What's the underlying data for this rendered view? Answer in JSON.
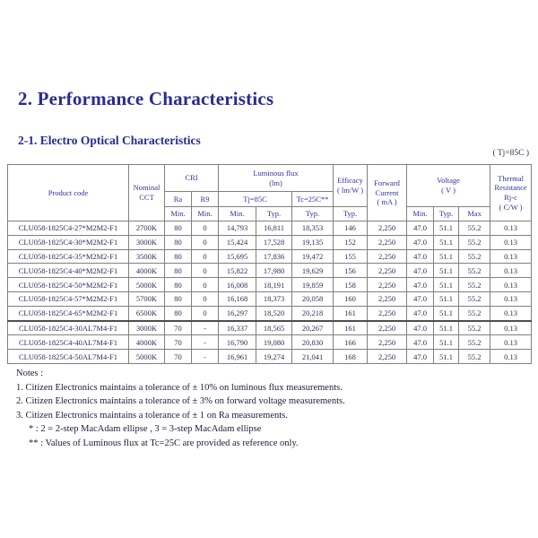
{
  "page": {
    "title": "2. Performance Characteristics",
    "subtitle": "2-1. Electro Optical Characteristics",
    "condition_note": "( Tj=85C )"
  },
  "table": {
    "headers": {
      "product_code": "Product code",
      "nominal_cct": "Nominal\nCCT",
      "cri": "CRI",
      "ra": "Ra",
      "r9": "R9",
      "luminous_flux": "Luminous flux\n(lm)",
      "tj85": "Tj=85C",
      "tc25": "Tc=25C**",
      "efficacy": "Efficacy\n( lm/W )",
      "forward_current": "Forward\nCurrent\n( mA )",
      "voltage": "Voltage\n( V )",
      "thermal_resistance": "Thermal\nResistance\nRj-c\n( C/W )",
      "min": "Min.",
      "typ": "Typ.",
      "max": "Max"
    },
    "column_keys": [
      "product-code",
      "nominal-cct",
      "cri-ra-min",
      "cri-r9-min",
      "flux-tj85-min",
      "flux-tj85-typ",
      "flux-tc25-typ",
      "efficacy-typ",
      "forward-current",
      "voltage-min",
      "voltage-typ",
      "voltage-max",
      "thermal-resistance"
    ],
    "group_break_index": 7,
    "rows": [
      [
        "CLU058-1825C4-27*M2M2-F1",
        "2700K",
        "80",
        "0",
        "14,793",
        "16,811",
        "18,353",
        "146",
        "2,250",
        "47.0",
        "51.1",
        "55.2",
        "0.13"
      ],
      [
        "CLU058-1825C4-30*M2M2-F1",
        "3000K",
        "80",
        "0",
        "15,424",
        "17,528",
        "19,135",
        "152",
        "2,250",
        "47.0",
        "51.1",
        "55.2",
        "0.13"
      ],
      [
        "CLU058-1825C4-35*M2M2-F1",
        "3500K",
        "80",
        "0",
        "15,695",
        "17,836",
        "19,472",
        "155",
        "2,250",
        "47.0",
        "51.1",
        "55.2",
        "0.13"
      ],
      [
        "CLU058-1825C4-40*M2M2-F1",
        "4000K",
        "80",
        "0",
        "15,822",
        "17,980",
        "19,629",
        "156",
        "2,250",
        "47.0",
        "51.1",
        "55.2",
        "0.13"
      ],
      [
        "CLU058-1825C4-50*M2M2-F1",
        "5000K",
        "80",
        "0",
        "16,008",
        "18,191",
        "19,859",
        "158",
        "2,250",
        "47.0",
        "51.1",
        "55.2",
        "0.13"
      ],
      [
        "CLU058-1825C4-57*M2M2-F1",
        "5700K",
        "80",
        "0",
        "16,168",
        "18,373",
        "20,058",
        "160",
        "2,250",
        "47.0",
        "51.1",
        "55.2",
        "0.13"
      ],
      [
        "CLU058-1825C4-65*M2M2-F1",
        "6500K",
        "80",
        "0",
        "16,297",
        "18,520",
        "20,218",
        "161",
        "2,250",
        "47.0",
        "51.1",
        "55.2",
        "0.13"
      ],
      [
        "CLU058-1825C4-30AL7M4-F1",
        "3000K",
        "70",
        "-",
        "16,337",
        "18,565",
        "20,267",
        "161",
        "2,250",
        "47.0",
        "51.1",
        "55.2",
        "0.13"
      ],
      [
        "CLU058-1825C4-40AL7M4-F1",
        "4000K",
        "70",
        "-",
        "16,790",
        "19,080",
        "20,830",
        "166",
        "2,250",
        "47.0",
        "51.1",
        "55.2",
        "0.13"
      ],
      [
        "CLU058-1825C4-50AL7M4-F1",
        "5000K",
        "70",
        "-",
        "16,961",
        "19,274",
        "21,041",
        "168",
        "2,250",
        "47.0",
        "51.1",
        "55.2",
        "0.13"
      ]
    ]
  },
  "notes": {
    "label": "Notes :",
    "items": [
      {
        "text": "1. Citizen Electronics maintains a tolerance of ± 10% on luminous flux measurements.",
        "indent": false
      },
      {
        "text": "2. Citizen Electronics maintains a tolerance of ± 3% on forward voltage measurements.",
        "indent": false
      },
      {
        "text": "3. Citizen Electronics maintains a tolerance of ± 1 on Ra measurements.",
        "indent": false
      },
      {
        "text": "* : 2 = 2-step MacAdam ellipse , 3 = 3-step MacAdam ellipse",
        "indent": true
      },
      {
        "text": "** : Values of Luminous flux at Tc=25C are provided as reference only.",
        "indent": true
      }
    ]
  },
  "colors": {
    "heading": "#2b2b91",
    "table_header_text": "#3131a3",
    "table_data_text": "#2d2d5a",
    "border": "#808080"
  }
}
